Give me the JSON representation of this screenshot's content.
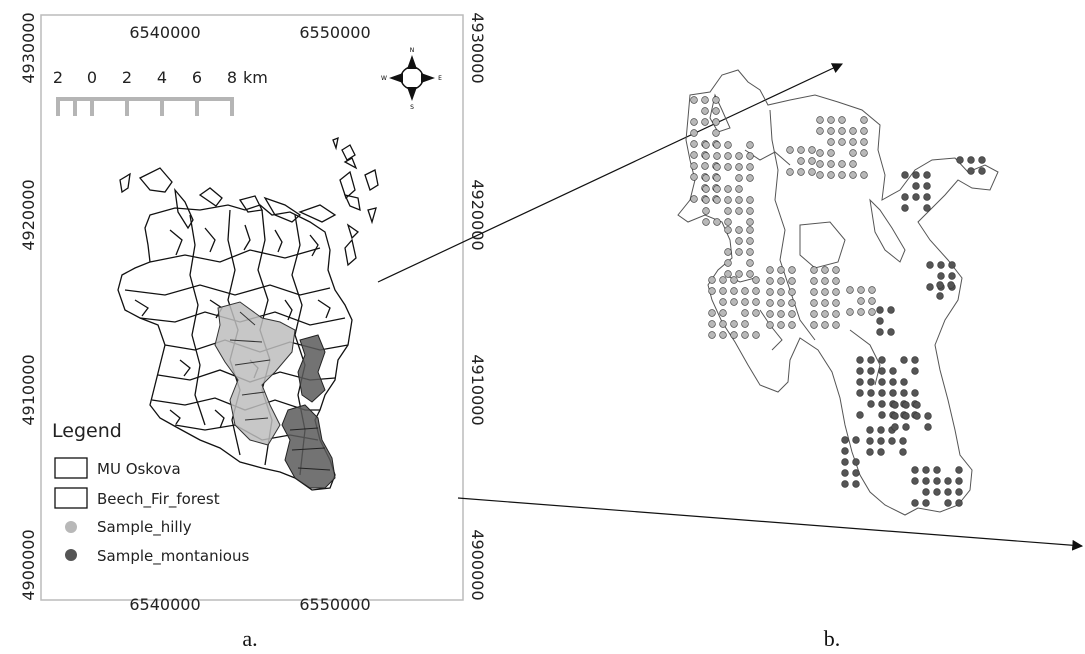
{
  "panel_a": {
    "x_ticks": [
      "6540000",
      "6550000"
    ],
    "y_ticks": [
      "4930000",
      "4920000",
      "4910000",
      "4900000"
    ],
    "scalebar": {
      "labels": [
        "2",
        "0",
        "2",
        "4",
        "6",
        "8"
      ],
      "unit": "km"
    },
    "north_arrow": {
      "n": "N",
      "s": "S",
      "e": "E",
      "w": "W"
    },
    "legend": {
      "title": "Legend",
      "items": [
        {
          "label": "MU Oskova",
          "symbol": "box"
        },
        {
          "label": "Beech_Fir_forest",
          "symbol": "box"
        },
        {
          "label": "Sample_hilly",
          "symbol": "dot",
          "color": "#b8b8b8"
        },
        {
          "label": "Sample_montanious",
          "symbol": "dot",
          "color": "#555555"
        }
      ]
    }
  },
  "captions": {
    "a": "a.",
    "b": "b."
  },
  "colors": {
    "hilly": "#b8b8b8",
    "montanious": "#555555"
  }
}
